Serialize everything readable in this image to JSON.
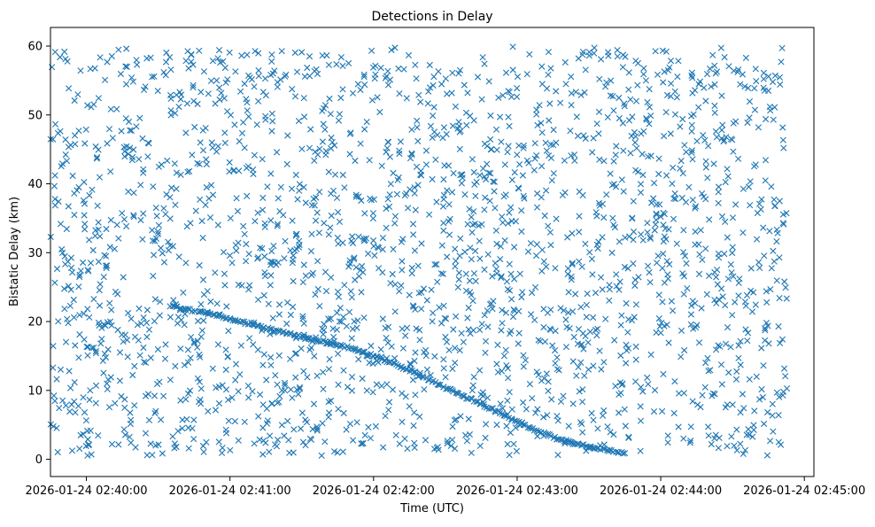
{
  "chart_data": {
    "type": "scatter",
    "title": "Detections in Delay",
    "xlabel": "Time (UTC)",
    "ylabel": "Bistatic Delay (km)",
    "x_unit": "seconds since 2026-01-24 02:40:00",
    "xlim": [
      -15,
      304
    ],
    "ylim": [
      -2.5,
      62.7
    ],
    "x_ticks": [
      0,
      60,
      120,
      180,
      240,
      300
    ],
    "x_tick_labels": [
      "2026-01-24 02:40:00",
      "2026-01-24 02:41:00",
      "2026-01-24 02:42:00",
      "2026-01-24 02:43:00",
      "2026-01-24 02:44:00",
      "2026-01-24 02:45:00"
    ],
    "y_ticks": [
      0,
      10,
      20,
      30,
      40,
      50,
      60
    ],
    "y_tick_labels": [
      "0",
      "10",
      "20",
      "30",
      "40",
      "50",
      "60"
    ],
    "marker": "x",
    "color": "#1f77b4",
    "grid": false,
    "legend": "none",
    "series": [
      {
        "name": "Noise detections",
        "description": "Uniformly scattered false detections",
        "time_range_s": [
          -15,
          293
        ],
        "delay_range_km": [
          0.5,
          60
        ],
        "approx_count": 2200
      },
      {
        "name": "Target track",
        "description": "Dense descending track of a real target",
        "x": [
          35,
          45,
          55,
          65,
          75,
          85,
          95,
          105,
          115,
          125,
          135,
          145,
          155,
          165,
          175,
          185,
          195,
          205,
          215,
          225
        ],
        "y": [
          22.2,
          21.6,
          20.9,
          19.9,
          19.0,
          18.2,
          17.4,
          16.6,
          15.6,
          14.4,
          12.9,
          11.3,
          9.6,
          8.0,
          6.4,
          4.6,
          3.2,
          2.2,
          1.5,
          0.9
        ]
      }
    ]
  }
}
